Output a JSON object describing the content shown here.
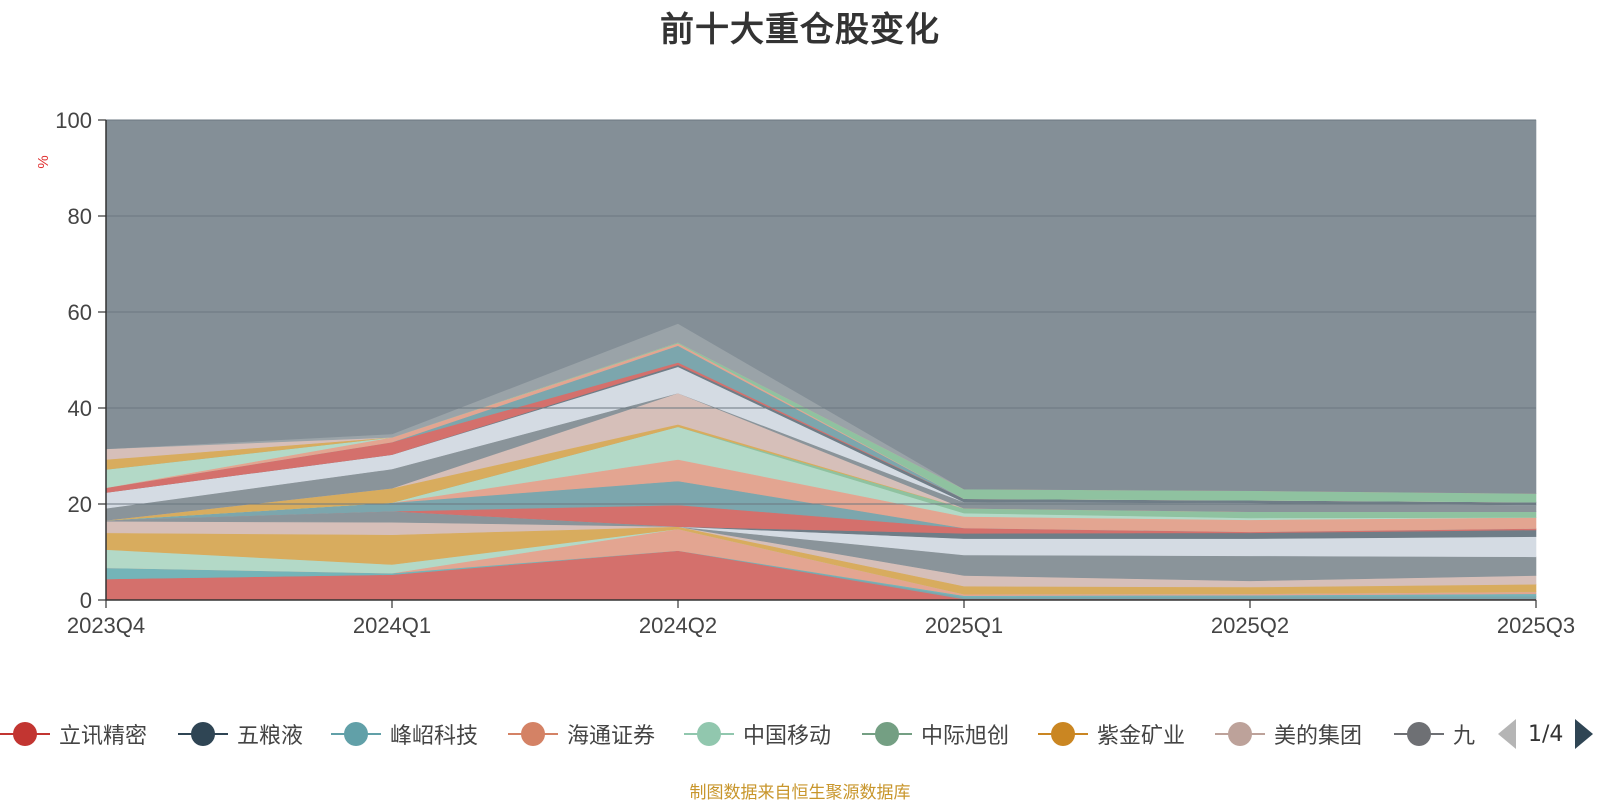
{
  "title": "前十大重仓股变化",
  "source_note": "制图数据来自恒生聚源数据库",
  "legend_pager": "1/4",
  "chart_data": {
    "type": "area",
    "stacked": true,
    "title": "前十大重仓股变化",
    "xlabel": "",
    "ylabel": "%",
    "ylim": [
      0,
      100
    ],
    "yticks": [
      "0",
      "20",
      "40",
      "60",
      "80",
      "100"
    ],
    "categories": [
      "2023Q4",
      "2024Q1",
      "2024Q2",
      "2025Q1",
      "2025Q2",
      "2025Q3"
    ],
    "grid": true,
    "legend_position": "bottom",
    "legend": [
      {
        "name": "立讯精密",
        "color": "#c23531"
      },
      {
        "name": "五粮液",
        "color": "#2f4554"
      },
      {
        "name": "峰岹科技",
        "color": "#61a0a8"
      },
      {
        "name": "海通证券",
        "color": "#d48265"
      },
      {
        "name": "中国移动",
        "color": "#91c7ae"
      },
      {
        "name": "中际旭创",
        "color": "#749f83"
      },
      {
        "name": "紫金矿业",
        "color": "#ca8622"
      },
      {
        "name": "美的集团",
        "color": "#bda29a"
      },
      {
        "name": "九号公司",
        "label": "九",
        "color": "#6e7074"
      }
    ],
    "layers": [
      {
        "color": "#d4706c",
        "values": [
          4.4,
          5.3,
          10.3,
          0.2,
          0.2,
          0.2
        ]
      },
      {
        "color": "#7ca6ad",
        "values": [
          0,
          0,
          0,
          0.4,
          0.6,
          0.6
        ]
      },
      {
        "color": "#74b4b8",
        "values": [
          2.3,
          0.3,
          0,
          0.3,
          0.2,
          0.5
        ]
      },
      {
        "color": "#e3a591",
        "values": [
          0,
          0,
          4.5,
          0.3,
          0.3,
          0.4
        ]
      },
      {
        "color": "#b3d9c7",
        "values": [
          3.8,
          1.8,
          0,
          0,
          0,
          0
        ]
      },
      {
        "color": "#d8ac5e",
        "values": [
          3.5,
          6.2,
          0.5,
          1.7,
          1.4,
          1.6
        ]
      },
      {
        "color": "#d6bfb9",
        "values": [
          2.4,
          2.6,
          0,
          2.2,
          1.3,
          1.8
        ]
      },
      {
        "color": "#8a949a",
        "values": [
          0.2,
          2.3,
          0,
          4.3,
          5.2,
          3.9
        ]
      },
      {
        "color": "#d4dbe3",
        "values": [
          0,
          0,
          0,
          3.4,
          3.6,
          4.2
        ]
      },
      {
        "color": "#6f7d87",
        "values": [
          0,
          0,
          0,
          1.1,
          1.2,
          1.4
        ]
      },
      {
        "color": "#d4706c",
        "values": [
          0,
          0,
          4.5,
          1.1,
          0.2,
          0.3
        ]
      },
      {
        "color": "#7ca6ad",
        "values": [
          0,
          1.8,
          5.0,
          0,
          0,
          0
        ]
      },
      {
        "color": "#e3a591",
        "values": [
          0,
          0,
          4.5,
          2.4,
          2.5,
          2.3
        ]
      },
      {
        "color": "#b3d9c7",
        "values": [
          0,
          0,
          6.8,
          0.7,
          0.4,
          0
        ]
      },
      {
        "color": "#8fc2a0",
        "values": [
          0,
          0,
          0,
          1.0,
          1.3,
          1.2
        ]
      },
      {
        "color": "#d8ac5e",
        "values": [
          0,
          3.0,
          0.5,
          0,
          0,
          0
        ]
      },
      {
        "color": "#d6bfb9",
        "values": [
          0,
          0,
          6.5,
          0,
          0,
          0
        ]
      },
      {
        "color": "#8a949a",
        "values": [
          2.5,
          4.0,
          0,
          1.3,
          1.8,
          1.4
        ]
      },
      {
        "color": "#d4dbe3",
        "values": [
          3.3,
          3.0,
          5.5,
          0,
          0,
          0
        ]
      },
      {
        "color": "#6f7d87",
        "values": [
          0,
          0,
          0.4,
          0.7,
          0.6,
          0.6
        ]
      },
      {
        "color": "#d4706c",
        "values": [
          1.0,
          2.6,
          0.5,
          0,
          0,
          0
        ]
      },
      {
        "color": "#7ca6ad",
        "values": [
          0,
          0,
          3.5,
          0,
          0,
          0
        ]
      },
      {
        "color": "#e3a591",
        "values": [
          0,
          1.0,
          0.5,
          0,
          0,
          0
        ]
      },
      {
        "color": "#b3d9c7",
        "values": [
          3.8,
          0,
          0,
          0,
          0,
          0
        ]
      },
      {
        "color": "#8fc2a0",
        "values": [
          0,
          0,
          0.2,
          2.0,
          2.0,
          1.8
        ]
      },
      {
        "color": "#d8ac5e",
        "values": [
          2.1,
          0,
          0,
          0,
          0,
          0
        ]
      },
      {
        "color": "#d6bfb9",
        "values": [
          2.2,
          0,
          0,
          0,
          0,
          0
        ]
      },
      {
        "color": "#9aa3a8",
        "values": [
          0,
          0.7,
          3.9,
          0,
          0,
          0
        ]
      },
      {
        "color": "#848f97",
        "values": [
          70.5,
          67.4,
          44.5,
          77.8,
          77.2,
          78.1
        ]
      }
    ]
  }
}
